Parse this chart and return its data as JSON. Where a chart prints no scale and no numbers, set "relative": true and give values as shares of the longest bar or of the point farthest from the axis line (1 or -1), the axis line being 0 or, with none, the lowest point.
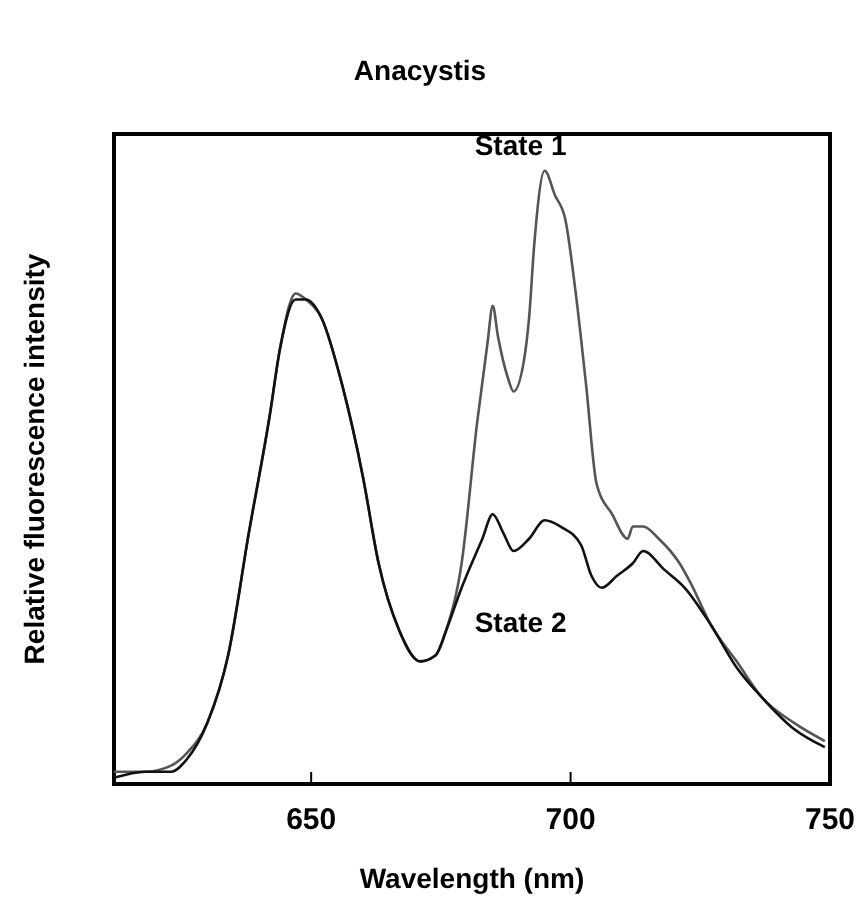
{
  "chart_data": {
    "type": "line",
    "title": "Anacystis",
    "xlabel": "Wavelength (nm)",
    "ylabel": "Relative fluorescence intensity",
    "relative": true,
    "xlim": [
      612,
      750
    ],
    "xticks": [
      650,
      700,
      750
    ],
    "grid": false,
    "marker": "none",
    "line_style": "solid",
    "series": [
      {
        "name": "State 1",
        "color": "#555555",
        "x": [
          612,
          618,
          623,
          626,
          630,
          634,
          638,
          642,
          644,
          647,
          649,
          652,
          656,
          660,
          663,
          667,
          671,
          674,
          676,
          679,
          682,
          684,
          685,
          686,
          688,
          689,
          691,
          692,
          693,
          695,
          697,
          699,
          701,
          703,
          705,
          708,
          711,
          712,
          714,
          717,
          721,
          723,
          727,
          732,
          737,
          743,
          749
        ],
        "values": [
          0.02,
          0.02,
          0.03,
          0.05,
          0.1,
          0.21,
          0.41,
          0.6,
          0.71,
          0.8,
          0.79,
          0.76,
          0.65,
          0.5,
          0.36,
          0.25,
          0.2,
          0.21,
          0.25,
          0.36,
          0.59,
          0.72,
          0.78,
          0.73,
          0.66,
          0.64,
          0.69,
          0.76,
          0.88,
          1,
          0.96,
          0.92,
          0.8,
          0.65,
          0.49,
          0.44,
          0.4,
          0.42,
          0.42,
          0.4,
          0.36,
          0.33,
          0.26,
          0.2,
          0.14,
          0.1,
          0.07
        ]
      },
      {
        "name": "State 2",
        "color": "#111111",
        "x": [
          612,
          618,
          623,
          626,
          630,
          634,
          638,
          642,
          644,
          647,
          649,
          652,
          656,
          660,
          663,
          667,
          671,
          674,
          676,
          679,
          683,
          685,
          687,
          689,
          692,
          695,
          698,
          702,
          704,
          706,
          709,
          712,
          714,
          718,
          722,
          727,
          732,
          737,
          743,
          749
        ],
        "values": [
          0.01,
          0.02,
          0.02,
          0.04,
          0.1,
          0.21,
          0.41,
          0.6,
          0.71,
          0.79,
          0.79,
          0.76,
          0.65,
          0.5,
          0.36,
          0.25,
          0.2,
          0.21,
          0.25,
          0.32,
          0.4,
          0.44,
          0.41,
          0.38,
          0.4,
          0.43,
          0.42,
          0.39,
          0.34,
          0.32,
          0.34,
          0.36,
          0.38,
          0.35,
          0.32,
          0.26,
          0.19,
          0.14,
          0.09,
          0.06
        ]
      }
    ]
  }
}
